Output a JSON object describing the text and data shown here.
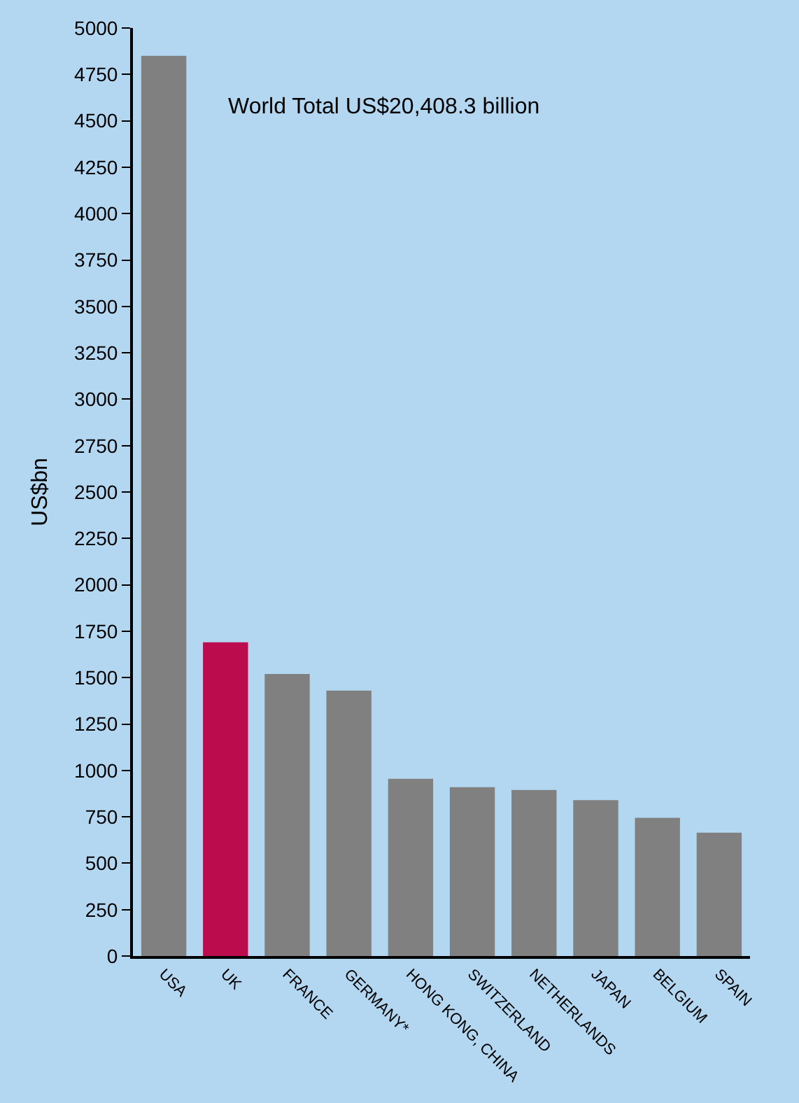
{
  "chart_data": {
    "type": "bar",
    "ylabel": "US$bn",
    "categories": [
      "USA",
      "UK",
      "FRANCE",
      "GERMANY*",
      "HONG KONG, CHINA",
      "SWITZERLAND",
      "NETHERLANDS",
      "JAPAN",
      "BELGIUM",
      "SPAIN"
    ],
    "values": [
      4850,
      1690,
      1520,
      1430,
      955,
      910,
      895,
      840,
      745,
      665
    ],
    "colors": [
      "#808080",
      "#bb0d4e",
      "#808080",
      "#808080",
      "#808080",
      "#808080",
      "#808080",
      "#808080",
      "#808080",
      "#808080"
    ],
    "ylim": [
      0,
      5000
    ],
    "yticks": [
      0,
      250,
      500,
      750,
      1000,
      1250,
      1500,
      1750,
      2000,
      2250,
      2500,
      2750,
      3000,
      3250,
      3500,
      3750,
      4000,
      4250,
      4500,
      4750,
      5000
    ],
    "grid": false,
    "annotations": [
      "World Total US$20,408.3 billion"
    ]
  }
}
